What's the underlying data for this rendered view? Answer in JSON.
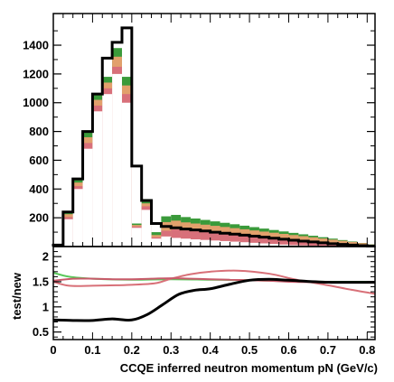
{
  "chart_data": [
    {
      "panel": "top",
      "type": "bar",
      "bin_edges": [
        0.0,
        0.025,
        0.05,
        0.075,
        0.1,
        0.125,
        0.15,
        0.175,
        0.2,
        0.225,
        0.25,
        0.275,
        0.3,
        0.325,
        0.35,
        0.375,
        0.4,
        0.425,
        0.45,
        0.475,
        0.5,
        0.525,
        0.55,
        0.575,
        0.6,
        0.625,
        0.65,
        0.675,
        0.7,
        0.725,
        0.75,
        0.775,
        0.8,
        0.825
      ],
      "series": [
        {
          "style": "filled",
          "color": "#3a9a3a",
          "values": [
            10,
            240,
            470,
            800,
            1060,
            1180,
            1380,
            1180,
            160,
            330,
            100,
            210,
            220,
            205,
            195,
            185,
            175,
            165,
            155,
            145,
            135,
            125,
            115,
            105,
            95,
            85,
            75,
            65,
            55,
            45,
            35,
            25,
            15
          ]
        },
        {
          "style": "filled",
          "color": "#e2a06c",
          "values": [
            8,
            225,
            445,
            760,
            1020,
            1140,
            1320,
            1120,
            150,
            300,
            80,
            170,
            180,
            168,
            160,
            152,
            144,
            136,
            128,
            120,
            112,
            104,
            96,
            88,
            80,
            72,
            64,
            56,
            48,
            40,
            32,
            24,
            14
          ]
        },
        {
          "style": "filled",
          "color": "#d8707a",
          "values": [
            6,
            205,
            420,
            720,
            980,
            1100,
            1250,
            1060,
            140,
            280,
            65,
            110,
            120,
            112,
            106,
            100,
            94,
            88,
            82,
            76,
            70,
            64,
            58,
            52,
            46,
            40,
            34,
            28,
            22,
            16,
            10,
            6,
            4
          ]
        },
        {
          "style": "filled",
          "color": "#ffffff",
          "values": [
            5,
            190,
            400,
            680,
            940,
            1060,
            1200,
            1000,
            130,
            255,
            55,
            70,
            60,
            55,
            50,
            46,
            42,
            38,
            34,
            30,
            26,
            22,
            18,
            14,
            10,
            8,
            6,
            4,
            3,
            2,
            1,
            1,
            1
          ]
        },
        {
          "style": "outline",
          "color": "#000000",
          "values": [
            10,
            240,
            470,
            800,
            1060,
            1310,
            1420,
            1520,
            560,
            320,
            160,
            140,
            130,
            122,
            115,
            108,
            100,
            93,
            86,
            79,
            72,
            65,
            58,
            51,
            44,
            38,
            32,
            26,
            20,
            15,
            10,
            6,
            3
          ]
        }
      ],
      "ylim": [
        0,
        1620
      ],
      "yticks": [
        200,
        400,
        600,
        800,
        1000,
        1200,
        1400
      ],
      "ytick_labels": [
        "200",
        "400",
        "600",
        "800",
        "1000",
        "1200",
        "1400"
      ]
    },
    {
      "panel": "bottom",
      "type": "line",
      "ylabel": "test/new",
      "xlabel": "CCQE inferred neutron momentum pN (GeV/c)",
      "xlim": [
        0,
        0.82
      ],
      "ylim": [
        0.35,
        2.2
      ],
      "xticks": [
        0,
        0.1,
        0.2,
        0.3,
        0.4,
        0.5,
        0.6,
        0.7,
        0.8
      ],
      "xtick_labels": [
        "0",
        "0.1",
        "0.2",
        "0.3",
        "0.4",
        "0.5",
        "0.6",
        "0.7",
        "0.8"
      ],
      "yticks": [
        0.5,
        1,
        1.5,
        2
      ],
      "ytick_labels": [
        "0.5",
        "1",
        "1.5",
        "2"
      ],
      "series": [
        {
          "color": "#5ac85a",
          "x": [
            0,
            0.04,
            0.1,
            0.2,
            0.3,
            0.4,
            0.5,
            0.6,
            0.7,
            0.82
          ],
          "y": [
            1.68,
            1.6,
            1.56,
            1.54,
            1.55,
            1.54,
            1.53,
            1.51,
            1.5,
            1.5
          ]
        },
        {
          "color": "#d87078",
          "x": [
            0,
            0.04,
            0.1,
            0.2,
            0.26,
            0.3,
            0.35,
            0.4,
            0.47,
            0.55,
            0.62,
            0.7,
            0.76,
            0.82
          ],
          "y": [
            1.5,
            1.42,
            1.42,
            1.44,
            1.47,
            1.56,
            1.65,
            1.7,
            1.72,
            1.66,
            1.54,
            1.43,
            1.34,
            1.26
          ]
        },
        {
          "color": "#c85a6a",
          "x": [
            0,
            0.05,
            0.1,
            0.15,
            0.2,
            0.25,
            0.3,
            0.35,
            0.4,
            0.45,
            0.5,
            0.55,
            0.6,
            0.7,
            0.82
          ],
          "y": [
            1.52,
            1.56,
            1.56,
            1.55,
            1.55,
            1.56,
            1.57,
            1.56,
            1.55,
            1.54,
            1.53,
            1.52,
            1.5,
            1.49,
            1.48
          ]
        },
        {
          "color": "#000000",
          "x": [
            0,
            0.05,
            0.1,
            0.15,
            0.2,
            0.24,
            0.28,
            0.32,
            0.36,
            0.4,
            0.45,
            0.5,
            0.55,
            0.6,
            0.7,
            0.82
          ],
          "y": [
            0.74,
            0.73,
            0.73,
            0.76,
            0.74,
            0.85,
            1.05,
            1.25,
            1.33,
            1.36,
            1.45,
            1.53,
            1.55,
            1.53,
            1.49,
            1.49
          ]
        }
      ]
    }
  ]
}
